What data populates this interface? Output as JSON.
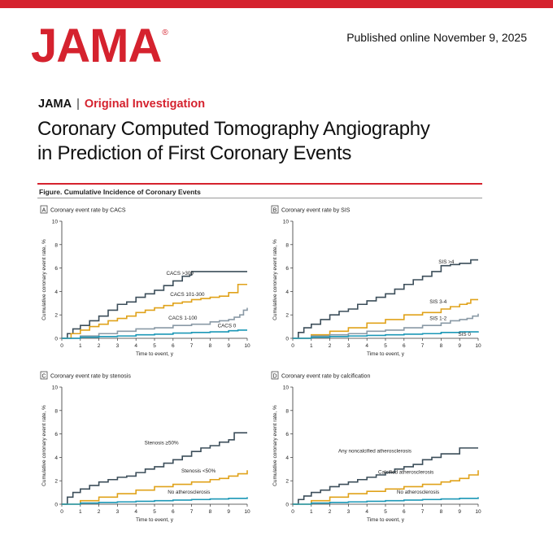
{
  "header": {
    "logo": "JAMA",
    "logo_mark": "®",
    "published": "Published online November 9, 2025",
    "journal": "JAMA",
    "category": "Original Investigation",
    "title_line1": "Coronary Computed Tomography Angiography",
    "title_line2": "in Prediction of First Coronary Events",
    "figure_title": "Figure. Cumulative Incidence of Coronary Events"
  },
  "colors": {
    "brand": "#d5222e",
    "dark": "#3c4e5a",
    "orange": "#e0a21a",
    "gray": "#8a9aa6",
    "teal": "#1b97b6"
  },
  "chart_data": [
    {
      "type": "line",
      "panel_letter": "A",
      "title": "Coronary event rate by CACS",
      "xlabel": "Time to event, y",
      "ylabel": "Cumulative coronary event rate, %",
      "xlim": [
        0,
        10
      ],
      "ylim": [
        0,
        10
      ],
      "xticks": [
        0,
        1,
        2,
        3,
        4,
        5,
        6,
        7,
        8,
        9,
        10
      ],
      "yticks": [
        0,
        2,
        4,
        6,
        8,
        10
      ],
      "series": [
        {
          "name": "CACS >300",
          "color": "dark",
          "label_at": [
            7.1,
            5.4
          ],
          "x": [
            0,
            0.3,
            0.6,
            1,
            1.5,
            2,
            2.5,
            3,
            3.5,
            4,
            4.5,
            5,
            5.5,
            6,
            6.5,
            6.9,
            7,
            7.5,
            8,
            10
          ],
          "y": [
            0,
            0.4,
            0.8,
            1.1,
            1.5,
            1.9,
            2.4,
            2.9,
            3.1,
            3.5,
            3.8,
            4.1,
            4.5,
            4.9,
            5.3,
            5.4,
            5.7,
            5.7,
            5.7,
            5.7
          ]
        },
        {
          "name": "CACS 101-300",
          "color": "orange",
          "label_at": [
            7.7,
            3.6
          ],
          "x": [
            0,
            0.5,
            1,
            1.5,
            2,
            2.5,
            3,
            3.5,
            4,
            4.5,
            5,
            5.5,
            6,
            6.5,
            7,
            7.5,
            8,
            8.5,
            9,
            9.5,
            10
          ],
          "y": [
            0,
            0.4,
            0.7,
            1,
            1.2,
            1.5,
            1.7,
            1.9,
            2.2,
            2.4,
            2.6,
            2.8,
            3,
            3.1,
            3.3,
            3.4,
            3.5,
            3.6,
            3.9,
            4.6,
            4.6
          ]
        },
        {
          "name": "CACS 1-100",
          "color": "gray",
          "label_at": [
            7.3,
            1.6
          ],
          "x": [
            0,
            1,
            2,
            3,
            4,
            5,
            6,
            7,
            8,
            8.5,
            9,
            9.3,
            9.6,
            9.8,
            10
          ],
          "y": [
            0,
            0.2,
            0.4,
            0.6,
            0.8,
            0.9,
            1.1,
            1.2,
            1.4,
            1.5,
            1.6,
            1.8,
            2,
            2.4,
            2.6
          ]
        },
        {
          "name": "CACS 0",
          "color": "teal",
          "label_at": [
            9.4,
            0.95
          ],
          "x": [
            0,
            1,
            2,
            3,
            4,
            5,
            6,
            7,
            8,
            9,
            9.5,
            10
          ],
          "y": [
            0,
            0.1,
            0.15,
            0.2,
            0.3,
            0.35,
            0.45,
            0.5,
            0.55,
            0.65,
            0.7,
            0.7
          ]
        }
      ]
    },
    {
      "type": "line",
      "panel_letter": "B",
      "title": "Coronary event rate by SIS",
      "xlabel": "Time to event, y",
      "ylabel": "Cumulative coronary event rate, %",
      "xlim": [
        0,
        10
      ],
      "ylim": [
        0,
        10
      ],
      "xticks": [
        0,
        1,
        2,
        3,
        4,
        5,
        6,
        7,
        8,
        9,
        10
      ],
      "yticks": [
        0,
        2,
        4,
        6,
        8,
        10
      ],
      "series": [
        {
          "name": "SIS >4",
          "color": "dark",
          "label_at": [
            8.7,
            6.4
          ],
          "x": [
            0,
            0.3,
            0.6,
            1,
            1.5,
            2,
            2.5,
            3,
            3.5,
            4,
            4.5,
            5,
            5.5,
            6,
            6.5,
            7,
            7.5,
            8,
            8.5,
            9,
            9.3,
            9.6,
            10
          ],
          "y": [
            0,
            0.5,
            0.9,
            1.2,
            1.6,
            2,
            2.3,
            2.5,
            2.9,
            3.2,
            3.5,
            3.8,
            4.2,
            4.6,
            5,
            5.3,
            5.7,
            6.2,
            6.3,
            6.4,
            6.4,
            6.7,
            6.7
          ]
        },
        {
          "name": "SIS 3-4",
          "color": "orange",
          "label_at": [
            8.3,
            3.0
          ],
          "x": [
            0,
            1,
            2,
            3,
            4,
            5,
            6,
            7,
            8,
            8.5,
            9,
            9.4,
            9.6,
            10
          ],
          "y": [
            0,
            0.3,
            0.6,
            0.9,
            1.3,
            1.6,
            2,
            2.2,
            2.5,
            2.7,
            2.9,
            3,
            3.3,
            3.3
          ]
        },
        {
          "name": "SIS 1-2",
          "color": "gray",
          "label_at": [
            8.3,
            1.55
          ],
          "x": [
            0,
            1,
            2,
            3,
            4,
            5,
            6,
            7,
            8,
            8.5,
            9,
            9.4,
            9.7,
            10
          ],
          "y": [
            0,
            0.2,
            0.3,
            0.4,
            0.6,
            0.7,
            0.9,
            1.1,
            1.3,
            1.5,
            1.6,
            1.7,
            1.9,
            2.1
          ]
        },
        {
          "name": "SIS 0",
          "color": "teal",
          "label_at": [
            9.6,
            0.2
          ],
          "x": [
            0,
            1,
            2,
            3,
            4,
            5,
            6,
            7,
            8,
            9,
            10
          ],
          "y": [
            0,
            0.1,
            0.15,
            0.2,
            0.25,
            0.3,
            0.35,
            0.4,
            0.5,
            0.55,
            0.6
          ]
        }
      ]
    },
    {
      "type": "line",
      "panel_letter": "C",
      "title": "Coronary event rate by stenosis",
      "xlabel": "Time to event, y",
      "ylabel": "Cumulative coronary event rate, %",
      "xlim": [
        0,
        10
      ],
      "ylim": [
        0,
        10
      ],
      "xticks": [
        0,
        1,
        2,
        3,
        4,
        5,
        6,
        7,
        8,
        9,
        10
      ],
      "yticks": [
        0,
        2,
        4,
        6,
        8,
        10
      ],
      "series": [
        {
          "name": "Stenosis ≥50%",
          "color": "dark",
          "label_at": [
            6.3,
            5.1
          ],
          "x": [
            0,
            0.3,
            0.6,
            1,
            1.5,
            2,
            2.5,
            3,
            3.5,
            4,
            4.5,
            5,
            5.5,
            6,
            6.5,
            7,
            7.5,
            8,
            8.5,
            9,
            9.3,
            10
          ],
          "y": [
            0,
            0.6,
            1,
            1.3,
            1.6,
            1.9,
            2.1,
            2.3,
            2.4,
            2.7,
            3,
            3.2,
            3.5,
            3.8,
            4.1,
            4.5,
            4.8,
            5,
            5.3,
            5.5,
            6.1,
            6.1
          ]
        },
        {
          "name": "Stenosis <50%",
          "color": "orange",
          "label_at": [
            8.3,
            2.7
          ],
          "x": [
            0,
            1,
            2,
            3,
            4,
            5,
            6,
            7,
            8,
            8.5,
            9,
            9.5,
            10
          ],
          "y": [
            0,
            0.3,
            0.6,
            0.9,
            1.2,
            1.5,
            1.7,
            1.9,
            2.1,
            2.2,
            2.4,
            2.6,
            2.9
          ]
        },
        {
          "name": "No atherosclerosis",
          "color": "teal",
          "label_at": [
            8.0,
            0.9
          ],
          "x": [
            0,
            1,
            2,
            3,
            4,
            5,
            6,
            7,
            8,
            9,
            10
          ],
          "y": [
            0,
            0.1,
            0.15,
            0.2,
            0.25,
            0.3,
            0.35,
            0.4,
            0.45,
            0.5,
            0.6
          ]
        }
      ]
    },
    {
      "type": "line",
      "panel_letter": "D",
      "title": "Coronary event rate by calcification",
      "xlabel": "Time to event, y",
      "ylabel": "Cumulative coronary event rate, %",
      "xlim": [
        0,
        10
      ],
      "ylim": [
        0,
        10
      ],
      "xticks": [
        0,
        1,
        2,
        3,
        4,
        5,
        6,
        7,
        8,
        9,
        10
      ],
      "yticks": [
        0,
        2,
        4,
        6,
        8,
        10
      ],
      "series": [
        {
          "name": "Any noncalcified atherosclerosis",
          "color": "dark",
          "label_at": [
            6.4,
            4.4
          ],
          "x": [
            0,
            0.3,
            0.6,
            1,
            1.5,
            2,
            2.5,
            3,
            3.5,
            4,
            4.5,
            5,
            5.5,
            6,
            6.5,
            7,
            7.5,
            8,
            8.5,
            9,
            10
          ],
          "y": [
            0,
            0.4,
            0.7,
            1,
            1.2,
            1.5,
            1.7,
            1.9,
            2.1,
            2.3,
            2.5,
            2.7,
            3,
            3.2,
            3.4,
            3.8,
            4,
            4.3,
            4.3,
            4.8,
            4.8
          ]
        },
        {
          "name": "Calcified atherosclerosis",
          "color": "orange",
          "label_at": [
            7.6,
            2.6
          ],
          "x": [
            0,
            1,
            2,
            3,
            4,
            5,
            6,
            7,
            8,
            8.5,
            9,
            9.5,
            10
          ],
          "y": [
            0,
            0.3,
            0.6,
            0.9,
            1.1,
            1.3,
            1.5,
            1.7,
            1.9,
            2,
            2.2,
            2.5,
            2.9
          ]
        },
        {
          "name": "No atherosclerosis",
          "color": "teal",
          "label_at": [
            7.9,
            0.9
          ],
          "x": [
            0,
            1,
            2,
            3,
            4,
            5,
            6,
            7,
            8,
            9,
            10
          ],
          "y": [
            0,
            0.1,
            0.15,
            0.2,
            0.25,
            0.3,
            0.35,
            0.4,
            0.45,
            0.5,
            0.6
          ]
        }
      ]
    }
  ]
}
